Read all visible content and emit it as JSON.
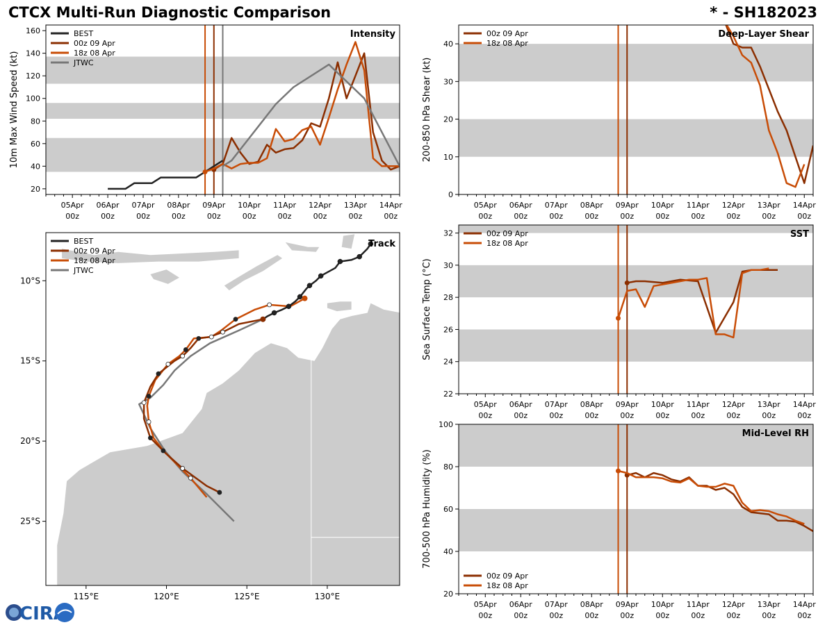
{
  "title_left": "CTCX Multi-Run Diagnostic Comparison",
  "title_right": "* - SH182023",
  "logo_text": "CIRA",
  "colors": {
    "best": "#222222",
    "run00z": "#8b2e00",
    "run18z": "#c84c06",
    "jtwc": "#777777",
    "band": "#cccccc",
    "land": "#cccccc"
  },
  "time_axis": {
    "tick_days": [
      1,
      2,
      3,
      4,
      5,
      6,
      7,
      8,
      9,
      10
    ],
    "tick_labels": [
      "05Apr",
      "06Apr",
      "07Apr",
      "08Apr",
      "09Apr",
      "10Apr",
      "11Apr",
      "12Apr",
      "13Apr",
      "14Apr"
    ],
    "tick_sub": "00z"
  },
  "chart_data": [
    {
      "id": "intensity",
      "type": "line",
      "title": "Intensity",
      "ylabel": "10m Max Wind Speed (kt)",
      "xlim": [
        0.25,
        10.25
      ],
      "ylim": [
        15,
        165
      ],
      "yticks": [
        20,
        40,
        60,
        80,
        100,
        120,
        140,
        160
      ],
      "bands": [
        [
          35,
          65
        ],
        [
          82,
          96
        ],
        [
          113,
          137
        ]
      ],
      "vlines": [
        {
          "x": 4.75,
          "color_key": "run18z"
        },
        {
          "x": 5.0,
          "color_key": "run00z"
        },
        {
          "x": 5.25,
          "color_key": "jtwc"
        }
      ],
      "legend": [
        "BEST",
        "00z 09 Apr",
        "18z 08 Apr",
        "JTWC"
      ],
      "series": [
        {
          "name": "BEST",
          "color_key": "best",
          "x": [
            2,
            2.5,
            2.75,
            3.25,
            3.5,
            4,
            4.5,
            4.75,
            5,
            5.25
          ],
          "y": [
            20,
            20,
            25,
            25,
            30,
            30,
            30,
            35,
            40,
            45
          ]
        },
        {
          "name": "00z 09 Apr",
          "color_key": "run00z",
          "marker_first": true,
          "x": [
            5,
            5.25,
            5.5,
            5.75,
            6,
            6.25,
            6.5,
            6.75,
            7,
            7.25,
            7.5,
            7.75,
            8,
            8.25,
            8.5,
            8.75,
            9,
            9.25,
            9.5,
            9.75,
            10,
            10.25
          ],
          "y": [
            37,
            42,
            65,
            52,
            42,
            44,
            59,
            52,
            55,
            56,
            63,
            78,
            75,
            100,
            132,
            100,
            120,
            140,
            70,
            45,
            37,
            40
          ]
        },
        {
          "name": "18z 08 Apr",
          "color_key": "run18z",
          "marker_first": true,
          "x": [
            4.75,
            5,
            5.25,
            5.5,
            5.75,
            6,
            6.25,
            6.5,
            6.75,
            7,
            7.25,
            7.5,
            7.75,
            8,
            8.25,
            8.5,
            8.75,
            9,
            9.25,
            9.5,
            9.75,
            10,
            10.25
          ],
          "y": [
            35,
            38,
            42,
            38,
            42,
            43,
            43,
            47,
            73,
            62,
            64,
            72,
            75,
            59,
            83,
            108,
            130,
            150,
            125,
            47,
            40,
            40,
            40
          ]
        },
        {
          "name": "JTWC",
          "color_key": "jtwc",
          "x": [
            5.25,
            5.5,
            5.75,
            6.75,
            7.25,
            8.25,
            9.25,
            10.25
          ],
          "y": [
            40,
            45,
            55,
            95,
            110,
            130,
            100,
            40
          ]
        }
      ]
    },
    {
      "id": "shear",
      "type": "line",
      "title": "Deep-Layer Shear",
      "ylabel": "200-850 hPa Shear (kt)",
      "xlim": [
        0.25,
        10.25
      ],
      "ylim": [
        0,
        45
      ],
      "yticks": [
        0,
        10,
        20,
        30,
        40
      ],
      "bands": [
        [
          10,
          20
        ],
        [
          30,
          40
        ]
      ],
      "vlines": [
        {
          "x": 4.75,
          "color_key": "run18z"
        },
        {
          "x": 5.0,
          "color_key": "run00z"
        }
      ],
      "legend": [
        "00z 09 Apr",
        "18z 08 Apr"
      ],
      "series": [
        {
          "name": "00z 09 Apr",
          "color_key": "run00z",
          "x": [
            7.75,
            8,
            8.25,
            8.5,
            8.75,
            9,
            9.25,
            9.5,
            9.75,
            10,
            10.25
          ],
          "y": [
            46,
            40,
            39,
            39,
            34,
            28,
            22,
            17,
            10,
            3,
            13
          ]
        },
        {
          "name": "18z 08 Apr",
          "color_key": "run18z",
          "x": [
            7.75,
            8,
            8.25,
            8.5,
            8.75,
            9,
            9.25,
            9.5,
            9.75,
            10
          ],
          "y": [
            46,
            42,
            37,
            35,
            29,
            17,
            11,
            3,
            2,
            8
          ]
        }
      ]
    },
    {
      "id": "sst",
      "type": "line",
      "title": "SST",
      "ylabel": "Sea Surface Temp (°C)",
      "xlim": [
        0.25,
        10.25
      ],
      "ylim": [
        22,
        32.5
      ],
      "yticks": [
        22,
        24,
        26,
        28,
        30,
        32
      ],
      "bands": [
        [
          24,
          26
        ],
        [
          28,
          30
        ],
        [
          32,
          32.5
        ]
      ],
      "vlines": [
        {
          "x": 4.75,
          "color_key": "run18z"
        },
        {
          "x": 5.0,
          "color_key": "run00z"
        }
      ],
      "legend": [
        "00z 09 Apr",
        "18z 08 Apr"
      ],
      "series": [
        {
          "name": "00z 09 Apr",
          "color_key": "run00z",
          "marker_first": true,
          "x": [
            5,
            5.25,
            5.5,
            6,
            6.5,
            7,
            7.5,
            8,
            8.25,
            8.5,
            8.75,
            9,
            9.25
          ],
          "y": [
            28.9,
            29.0,
            29.0,
            28.9,
            29.1,
            29.0,
            25.8,
            27.7,
            29.6,
            29.7,
            29.7,
            29.7,
            29.7
          ]
        },
        {
          "name": "18z 08 Apr",
          "color_key": "run18z",
          "marker_first": true,
          "x": [
            4.75,
            5,
            5.25,
            5.5,
            5.75,
            6,
            6.5,
            6.75,
            7,
            7.25,
            7.5,
            7.75,
            8,
            8.25,
            8.5,
            8.75,
            9
          ],
          "y": [
            26.7,
            28.4,
            28.5,
            27.4,
            28.7,
            28.8,
            29.0,
            29.1,
            29.1,
            29.2,
            25.7,
            25.7,
            25.5,
            29.5,
            29.7,
            29.7,
            29.8
          ]
        }
      ]
    },
    {
      "id": "rh",
      "type": "line",
      "title": "Mid-Level RH",
      "ylabel": "700-500 hPa Humidity (%)",
      "xlim": [
        0.25,
        10.25
      ],
      "ylim": [
        20,
        100
      ],
      "yticks": [
        20,
        40,
        60,
        80,
        100
      ],
      "bands": [
        [
          40,
          60
        ],
        [
          80,
          100
        ]
      ],
      "vlines": [
        {
          "x": 4.75,
          "color_key": "run18z"
        },
        {
          "x": 5.0,
          "color_key": "run00z"
        }
      ],
      "legend": [
        "00z 09 Apr",
        "18z 08 Apr"
      ],
      "legend_pos": "bottom-left",
      "series": [
        {
          "name": "00z 09 Apr",
          "color_key": "run00z",
          "marker_first": true,
          "x": [
            5,
            5.25,
            5.5,
            5.75,
            6,
            6.25,
            6.5,
            6.75,
            7,
            7.25,
            7.5,
            7.75,
            8,
            8.25,
            8.5,
            8.75,
            9,
            9.25,
            9.5,
            9.75,
            10,
            10.25
          ],
          "y": [
            76,
            77,
            75,
            77,
            76,
            74,
            73,
            75,
            71,
            71,
            69,
            70,
            67,
            61,
            58.5,
            58,
            57.5,
            54.5,
            54.5,
            54,
            52,
            49.5
          ]
        },
        {
          "name": "18z 08 Apr",
          "color_key": "run18z",
          "marker_first": true,
          "x": [
            4.75,
            5,
            5.25,
            5.5,
            5.75,
            6,
            6.25,
            6.5,
            6.75,
            7,
            7.25,
            7.5,
            7.75,
            8,
            8.25,
            8.5,
            8.75,
            9,
            9.25,
            9.5,
            9.75,
            10
          ],
          "y": [
            78,
            77,
            75,
            75,
            75,
            74.5,
            73,
            72.5,
            74.5,
            71,
            70.5,
            70.5,
            72,
            71,
            63,
            59,
            59.5,
            59,
            57.5,
            56.5,
            54.5,
            53
          ]
        }
      ]
    },
    {
      "id": "track",
      "type": "scatter",
      "title": "Track",
      "xlim": [
        112.5,
        134.5
      ],
      "ylim": [
        -29,
        -7
      ],
      "xticks": [
        115,
        120,
        125,
        130
      ],
      "xtick_labels": [
        "115°E",
        "120°E",
        "125°E",
        "130°E"
      ],
      "yticks": [
        -10,
        -15,
        -20,
        -25
      ],
      "ytick_labels": [
        "10°S",
        "15°S",
        "20°S",
        "25°S"
      ],
      "legend": [
        "BEST",
        "00z 09 Apr",
        "18z 08 Apr",
        "JTWC"
      ],
      "series": [
        {
          "name": "BEST",
          "color_key": "best",
          "marker_every": 2,
          "lon": [
            132.7,
            132.5,
            132.0,
            131.5,
            130.8,
            130.5,
            129.6,
            129.3,
            128.9,
            128.7,
            128.3,
            128.0,
            127.6,
            127.2,
            126.7,
            126.3,
            126.0
          ],
          "lat": [
            -7.7,
            -8.0,
            -8.5,
            -8.7,
            -8.8,
            -9.2,
            -9.7,
            -10.0,
            -10.3,
            -10.5,
            -11.0,
            -11.3,
            -11.6,
            -11.8,
            -12.0,
            -12.2,
            -12.4
          ]
        },
        {
          "name": "00z 09 Apr",
          "color_key": "run00z",
          "marker_first": true,
          "lon": [
            126.0,
            124.5,
            123.5,
            122.7,
            122.0,
            121.5,
            121.0,
            120.5,
            119.5,
            119.0,
            118.6,
            118.6,
            119.0,
            120.0,
            121.0,
            122.5,
            123.3
          ],
          "lat": [
            -12.4,
            -12.7,
            -13.2,
            -13.5,
            -13.6,
            -14.2,
            -14.7,
            -15.0,
            -15.8,
            -16.6,
            -17.6,
            -18.6,
            -19.8,
            -20.8,
            -21.7,
            -22.8,
            -23.2
          ]
        },
        {
          "name": "18z 08 Apr",
          "color_key": "run18z",
          "marker_first": true,
          "lon": [
            128.6,
            127.7,
            126.4,
            125.5,
            124.3,
            123.4,
            122.8,
            121.7,
            121.2,
            120.8,
            120.1,
            119.3,
            118.9,
            118.8,
            118.9,
            119.2,
            119.8,
            120.5,
            121.5,
            122.5
          ],
          "lat": [
            -11.1,
            -11.6,
            -11.5,
            -11.8,
            -12.4,
            -13.1,
            -13.5,
            -13.6,
            -14.3,
            -14.7,
            -15.2,
            -16.2,
            -17.2,
            -17.8,
            -18.8,
            -19.8,
            -20.6,
            -21.3,
            -22.3,
            -23.5
          ]
        },
        {
          "name": "JTWC",
          "color_key": "jtwc",
          "lon": [
            126.0,
            124.5,
            122.7,
            121.5,
            120.5,
            119.8,
            119.0,
            118.3,
            119.0,
            119.9,
            121.0,
            122.5,
            123.3,
            124.2
          ],
          "lat": [
            -12.4,
            -13.1,
            -13.9,
            -14.7,
            -15.6,
            -16.5,
            -17.3,
            -17.7,
            -19.2,
            -20.6,
            -21.9,
            -23.3,
            -24.1,
            -25.0
          ]
        }
      ]
    }
  ]
}
